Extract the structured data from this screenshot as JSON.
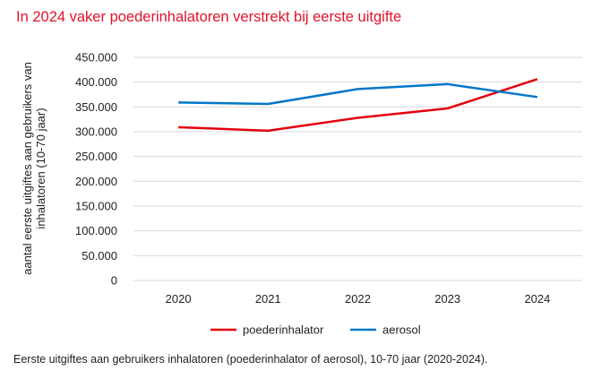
{
  "title": "In 2024 vaker poederinhalatoren verstrekt bij eerste uitgifte",
  "caption": "Eerste uitgiftes aan gebruikers inhalatoren (poederinhalator of aerosol), 10-70 jaar (2020-2024).",
  "colors": {
    "title": "#e3122b",
    "poederinhalator": "#e3000f",
    "aerosol": "#0077c8",
    "grid": "#d9d9d9"
  },
  "chart_data": {
    "type": "line",
    "title": "In 2024 vaker poederinhalatoren verstrekt bij eerste uitgifte",
    "xlabel": "",
    "ylabel_lines": [
      "aantal eerste uitgiftes aan gebruikers van",
      "inhalatoren (10-70 jaar)"
    ],
    "ylabel": "aantal eerste uitgiftes aan gebruikers van inhalatoren (10-70 jaar)",
    "categories": [
      "2020",
      "2021",
      "2022",
      "2023",
      "2024"
    ],
    "ylim": [
      0,
      450000
    ],
    "yticks": [
      0,
      50000,
      100000,
      150000,
      200000,
      250000,
      300000,
      350000,
      400000,
      450000
    ],
    "ytick_labels": [
      "0",
      "50.000",
      "100.000",
      "150.000",
      "200.000",
      "250.000",
      "300.000",
      "350.000",
      "400.000",
      "450.000"
    ],
    "grid": true,
    "legend_position": "bottom",
    "series": [
      {
        "name": "poederinhalator",
        "color": "#e3000f",
        "values": [
          309000,
          302000,
          328000,
          347000,
          406000
        ]
      },
      {
        "name": "aerosol",
        "color": "#0077c8",
        "values": [
          359000,
          356000,
          386000,
          396000,
          370000
        ]
      }
    ]
  }
}
